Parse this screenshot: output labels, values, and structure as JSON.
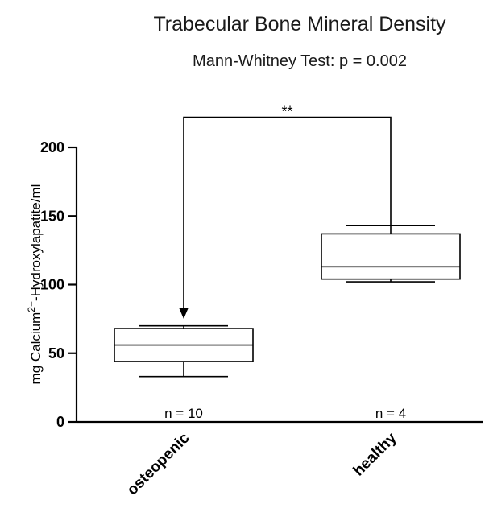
{
  "chart_data": {
    "type": "boxplot",
    "title": "Trabecular Bone Mineral Density",
    "subtitle": "Mann-Whitney Test: p = 0.002",
    "ylabel_main": "mg Calcium",
    "ylabel_sup": "2+",
    "ylabel_rest": "-Hydroxylapatite/ml",
    "ylim": [
      0,
      200
    ],
    "yticks": [
      0,
      50,
      100,
      150,
      200
    ],
    "categories": [
      "osteopenic",
      "healthy"
    ],
    "boxes": [
      {
        "category": "osteopenic",
        "min": 33,
        "q1": 44,
        "median": 56,
        "q3": 68,
        "max": 70,
        "n_label": "n = 10"
      },
      {
        "category": "healthy",
        "min": 102,
        "q1": 104,
        "median": 113,
        "q3": 137,
        "max": 143,
        "n_label": "n = 4"
      }
    ],
    "significance": {
      "label": "**",
      "bracket_level": 222
    }
  }
}
